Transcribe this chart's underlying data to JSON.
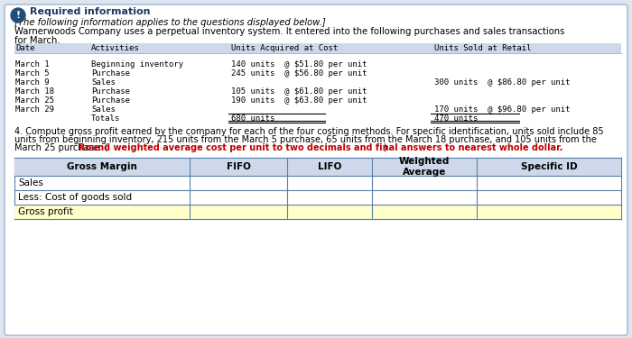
{
  "title": "Required information",
  "subtitle": "[The following information applies to the questions displayed below.]",
  "intro_line1": "Warnerwoods Company uses a perpetual inventory system. It entered into the following purchases and sales transactions",
  "intro_line2": "for March.",
  "table_headers": [
    "Date",
    "Activities",
    "Units Acquired at Cost",
    "Units Sold at Retail"
  ],
  "table_rows": [
    [
      "March 1",
      "Beginning inventory",
      "140 units  @ $51.80 per unit",
      ""
    ],
    [
      "March 5",
      "Purchase",
      "245 units  @ $56.80 per unit",
      ""
    ],
    [
      "March 9",
      "Sales",
      "",
      "300 units  @ $86.80 per unit"
    ],
    [
      "March 18",
      "Purchase",
      "105 units  @ $61.80 per unit",
      ""
    ],
    [
      "March 25",
      "Purchase",
      "190 units  @ $63.80 per unit",
      ""
    ],
    [
      "March 29",
      "Sales",
      "",
      "170 units  @ $96.80 per unit"
    ],
    [
      "",
      "Totals",
      "680 units",
      "470 units"
    ]
  ],
  "q4_line1": "4. Compute gross profit earned by the company for each of the four costing methods. For specific identification, units sold include 85",
  "q4_line2": "units from beginning inventory, 215 units from the March 5 purchase, 65 units from the March 18 purchase, and 105 units from the",
  "q4_line3_plain": "March 25 purchase. (",
  "q4_line3_bold": "Round weighted average cost per unit to two decimals and final answers to nearest whole dollar.",
  "q4_line3_end": ")",
  "gm_headers": [
    "Gross Margin",
    "FIFO",
    "LIFO",
    "Weighted\nAverage",
    "Specific ID"
  ],
  "gm_rows": [
    "Sales",
    "Less: Cost of goods sold",
    "Gross profit"
  ],
  "bg_color": "#cdd9ea",
  "highlight_bg": "#ffffcc",
  "border_color": "#5b7faa",
  "outer_bg": "#dce6f1",
  "icon_color": "#1f4e79",
  "title_color": "#1f3864",
  "text_color": "#000000",
  "card_bg": "#ffffff",
  "red_color": "#c00000"
}
